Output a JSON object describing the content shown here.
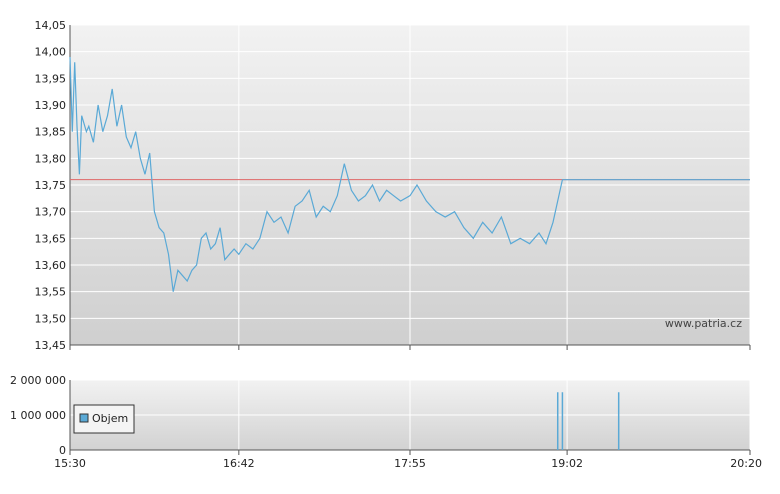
{
  "chart_data": [
    {
      "type": "line",
      "title": "",
      "xlabel": "",
      "ylabel": "",
      "ylim": [
        13.45,
        14.05
      ],
      "yticks": [
        "14,05",
        "14,00",
        "13,95",
        "13,90",
        "13,85",
        "13,80",
        "13,75",
        "13,70",
        "13,65",
        "13,60",
        "13,55",
        "13,50",
        "13,45"
      ],
      "xticks": [
        "15:30",
        "16:42",
        "17:55",
        "19:02",
        "20:20"
      ],
      "xrange": [
        "15:30",
        "20:20"
      ],
      "grid": true,
      "watermark": "www.patria.cz",
      "reference_line": {
        "value": 13.76,
        "color": "#e06666"
      },
      "series_color": "#5aa9d6",
      "series": [
        {
          "x": [
            "15:30",
            "15:31",
            "15:32",
            "15:33",
            "15:34",
            "15:35",
            "15:37",
            "15:38",
            "15:40",
            "15:42",
            "15:44",
            "15:46",
            "15:48",
            "15:50",
            "15:52",
            "15:54",
            "15:56",
            "15:58",
            "16:00",
            "16:02",
            "16:04",
            "16:06",
            "16:08",
            "16:10",
            "16:12",
            "16:14",
            "16:16",
            "16:18",
            "16:20",
            "16:22",
            "16:24",
            "16:26",
            "16:28",
            "16:30",
            "16:32",
            "16:34",
            "16:36",
            "16:38",
            "16:40",
            "16:42",
            "16:45",
            "16:48",
            "16:51",
            "16:54",
            "16:57",
            "17:00",
            "17:03",
            "17:06",
            "17:09",
            "17:12",
            "17:15",
            "17:18",
            "17:21",
            "17:24",
            "17:27",
            "17:30",
            "17:33",
            "17:36",
            "17:39",
            "17:42",
            "17:45",
            "17:48",
            "17:51",
            "17:55",
            "17:58",
            "18:02",
            "18:06",
            "18:10",
            "18:14",
            "18:18",
            "18:22",
            "18:26",
            "18:30",
            "18:34",
            "18:38",
            "18:42",
            "18:46",
            "18:50",
            "18:53",
            "18:56",
            "18:58",
            "19:00",
            "19:02",
            "19:10",
            "19:30",
            "20:00",
            "20:20"
          ],
          "values": [
            13.99,
            13.85,
            13.98,
            13.86,
            13.77,
            13.88,
            13.85,
            13.86,
            13.83,
            13.9,
            13.85,
            13.88,
            13.93,
            13.86,
            13.9,
            13.84,
            13.82,
            13.85,
            13.8,
            13.77,
            13.81,
            13.7,
            13.67,
            13.66,
            13.62,
            13.55,
            13.59,
            13.58,
            13.57,
            13.59,
            13.6,
            13.65,
            13.66,
            13.63,
            13.64,
            13.67,
            13.61,
            13.62,
            13.63,
            13.62,
            13.64,
            13.63,
            13.65,
            13.7,
            13.68,
            13.69,
            13.66,
            13.71,
            13.72,
            13.74,
            13.69,
            13.71,
            13.7,
            13.73,
            13.79,
            13.74,
            13.72,
            13.73,
            13.75,
            13.72,
            13.74,
            13.73,
            13.72,
            13.73,
            13.75,
            13.72,
            13.7,
            13.69,
            13.7,
            13.67,
            13.65,
            13.68,
            13.66,
            13.69,
            13.64,
            13.65,
            13.64,
            13.66,
            13.64,
            13.68,
            13.72,
            13.76,
            13.76,
            13.76,
            13.76,
            13.76,
            13.76
          ]
        }
      ]
    },
    {
      "type": "bar",
      "title": "",
      "xlabel": "",
      "ylabel": "",
      "ylim": [
        0,
        2000000
      ],
      "yticks": [
        "2 000 000",
        "1 000 000",
        "0"
      ],
      "xticks": [
        "15:30",
        "16:42",
        "17:55",
        "19:02",
        "20:20"
      ],
      "grid": true,
      "legend": {
        "label": "Objem",
        "placement": "left"
      },
      "series_color": "#5aa9d6",
      "series": [
        {
          "name": "Objem",
          "x": [
            "18:58",
            "19:00",
            "19:24"
          ],
          "values": [
            1650000,
            1650000,
            1650000
          ]
        }
      ]
    }
  ]
}
